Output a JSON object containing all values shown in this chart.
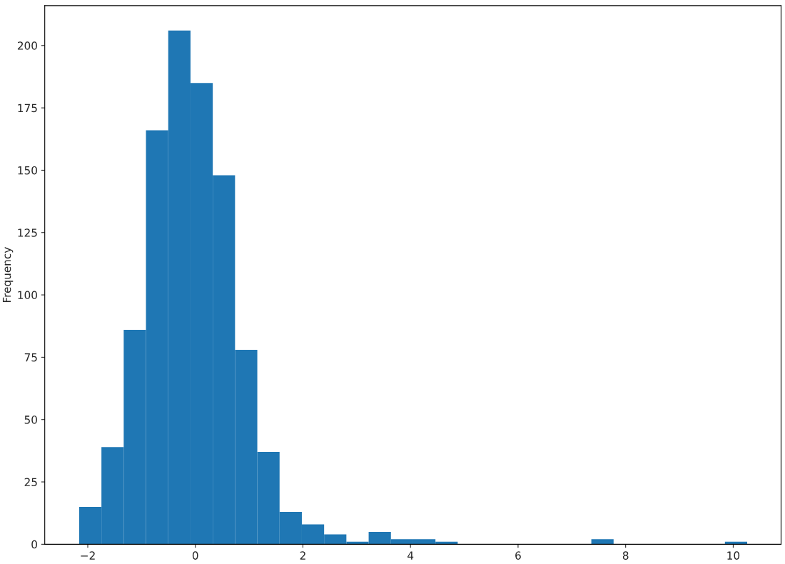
{
  "chart_data": {
    "type": "histogram",
    "ylabel": "Frequency",
    "color": "#1f77b4",
    "bins": [
      -2.16,
      -1.746,
      -1.332,
      -0.918,
      -0.504,
      -0.09,
      0.324,
      0.738,
      1.152,
      1.566,
      1.98,
      2.394,
      2.808,
      3.222,
      3.636,
      4.05,
      4.464,
      4.878,
      5.292,
      5.706,
      6.12,
      6.534,
      6.948,
      7.362,
      7.776,
      8.19,
      8.604,
      9.018,
      9.432,
      9.846,
      10.26
    ],
    "values": [
      15,
      39,
      86,
      166,
      206,
      185,
      148,
      78,
      37,
      13,
      8,
      4,
      1,
      5,
      2,
      2,
      1,
      0,
      0,
      0,
      0,
      0,
      0,
      2,
      0,
      0,
      0,
      0,
      0,
      1
    ],
    "xlim": [
      -2.8,
      10.89
    ],
    "ylim": [
      0,
      216
    ],
    "xticks": [
      {
        "value": -2,
        "label": "−2"
      },
      0,
      2,
      4,
      6,
      8,
      10
    ],
    "yticks": [
      0,
      25,
      50,
      75,
      100,
      125,
      150,
      175,
      200
    ],
    "grid": false
  }
}
